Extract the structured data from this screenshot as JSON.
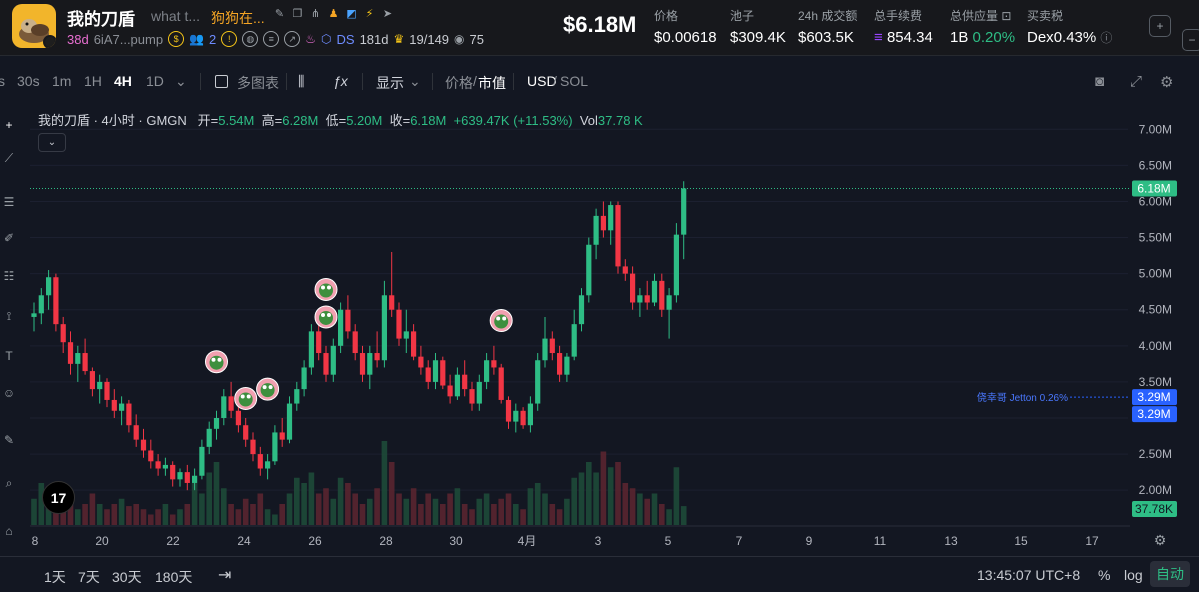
{
  "token": {
    "name": "我的刀盾",
    "description": "what t...",
    "channel": "狗狗在...",
    "age": "38d",
    "address": "6iA7...pump",
    "holders_small": "2",
    "dev": "DS",
    "dev_age": "181d",
    "top_holders": "19/149",
    "views": "75"
  },
  "header": {
    "market_cap": "$6.18M",
    "stats": [
      {
        "label": "价格",
        "value": "$0.00618"
      },
      {
        "label": "池子",
        "value": "$309.4K"
      },
      {
        "label": "24h 成交额",
        "value": "$603.5K"
      },
      {
        "label": "总手续费",
        "value": "854.34"
      },
      {
        "label": "总供应量",
        "value": "1B",
        "extra": "0.20%"
      },
      {
        "label": "买卖税",
        "value": "Dex",
        "extra": "0.43%"
      }
    ]
  },
  "toolbar": {
    "intervals": [
      "30s",
      "1m",
      "1H",
      "4H",
      "1D"
    ],
    "active_interval": "4H",
    "multi_chart": "多图表",
    "display": "显示",
    "price_mcap_a": "价格",
    "price_mcap_b": "市值",
    "currency_a": "USD",
    "currency_b": "SOL"
  },
  "legend": {
    "title": "我的刀盾 · 4小时 · GMGN",
    "open_label": "开",
    "open": "5.54M",
    "high_label": "高",
    "high": "6.28M",
    "low_label": "低",
    "low": "5.20M",
    "close_label": "收",
    "close": "6.18M",
    "change": "+639.47K (+11.53%)",
    "vol_label": "Vol",
    "vol": "37.78 K"
  },
  "chart_data": {
    "type": "candlestick",
    "y_ticks": [
      "7.00M",
      "6.50M",
      "6.00M",
      "5.50M",
      "5.00M",
      "4.50M",
      "4.00M",
      "3.50M",
      "3.00M",
      "2.50M",
      "2.00M"
    ],
    "y_range": [
      1.67,
      7.35
    ],
    "x_ticks": [
      "8",
      "20",
      "22",
      "24",
      "26",
      "28",
      "30",
      "4月",
      "3",
      "5",
      "7",
      "9",
      "11",
      "13",
      "15",
      "17"
    ],
    "current_price_label": "6.18M",
    "marker_price_label": "3.29M",
    "marker_text": "侥幸哥 Jetton 0.26%",
    "volume_label": "37.78K",
    "candles": [
      [
        4.4,
        4.6,
        4.2,
        4.45
      ],
      [
        4.45,
        4.8,
        4.3,
        4.7
      ],
      [
        4.7,
        5.05,
        4.5,
        4.95
      ],
      [
        4.95,
        5.0,
        4.2,
        4.3
      ],
      [
        4.3,
        4.4,
        3.9,
        4.05
      ],
      [
        4.05,
        4.2,
        3.6,
        3.75
      ],
      [
        3.75,
        4.0,
        3.5,
        3.9
      ],
      [
        3.9,
        4.1,
        3.6,
        3.65
      ],
      [
        3.65,
        3.7,
        3.3,
        3.4
      ],
      [
        3.4,
        3.6,
        3.2,
        3.5
      ],
      [
        3.5,
        3.55,
        3.15,
        3.25
      ],
      [
        3.25,
        3.4,
        3.0,
        3.1
      ],
      [
        3.1,
        3.3,
        2.9,
        3.2
      ],
      [
        3.2,
        3.25,
        2.8,
        2.9
      ],
      [
        2.9,
        3.05,
        2.6,
        2.7
      ],
      [
        2.7,
        2.85,
        2.45,
        2.55
      ],
      [
        2.55,
        2.7,
        2.3,
        2.4
      ],
      [
        2.4,
        2.5,
        2.2,
        2.3
      ],
      [
        2.3,
        2.45,
        2.2,
        2.35
      ],
      [
        2.35,
        2.4,
        2.05,
        2.15
      ],
      [
        2.15,
        2.3,
        2.05,
        2.25
      ],
      [
        2.25,
        2.35,
        2.0,
        2.1
      ],
      [
        2.1,
        2.3,
        2.0,
        2.2
      ],
      [
        2.2,
        2.7,
        2.15,
        2.6
      ],
      [
        2.6,
        2.95,
        2.5,
        2.85
      ],
      [
        2.85,
        3.1,
        2.7,
        3.0
      ],
      [
        3.0,
        3.4,
        2.9,
        3.3
      ],
      [
        3.3,
        3.5,
        3.0,
        3.1
      ],
      [
        3.1,
        3.2,
        2.8,
        2.9
      ],
      [
        2.9,
        3.0,
        2.6,
        2.7
      ],
      [
        2.7,
        2.8,
        2.4,
        2.5
      ],
      [
        2.5,
        2.6,
        2.2,
        2.3
      ],
      [
        2.3,
        2.5,
        2.15,
        2.4
      ],
      [
        2.4,
        2.9,
        2.35,
        2.8
      ],
      [
        2.8,
        3.0,
        2.6,
        2.7
      ],
      [
        2.7,
        3.3,
        2.65,
        3.2
      ],
      [
        3.2,
        3.5,
        3.1,
        3.4
      ],
      [
        3.4,
        3.8,
        3.3,
        3.7
      ],
      [
        3.7,
        4.3,
        3.6,
        4.2
      ],
      [
        4.2,
        4.4,
        3.8,
        3.9
      ],
      [
        3.9,
        4.0,
        3.5,
        3.6
      ],
      [
        3.6,
        4.1,
        3.5,
        4.0
      ],
      [
        4.0,
        4.6,
        3.9,
        4.5
      ],
      [
        4.5,
        4.7,
        4.1,
        4.2
      ],
      [
        4.2,
        4.3,
        3.8,
        3.9
      ],
      [
        3.9,
        4.0,
        3.5,
        3.6
      ],
      [
        3.6,
        4.0,
        3.4,
        3.9
      ],
      [
        3.9,
        4.2,
        3.7,
        3.8
      ],
      [
        3.8,
        4.9,
        3.7,
        4.7
      ],
      [
        4.7,
        5.3,
        4.4,
        4.5
      ],
      [
        4.5,
        4.6,
        4.0,
        4.1
      ],
      [
        4.1,
        4.5,
        3.9,
        4.2
      ],
      [
        4.2,
        4.3,
        3.8,
        3.85
      ],
      [
        3.85,
        4.0,
        3.6,
        3.7
      ],
      [
        3.7,
        3.8,
        3.4,
        3.5
      ],
      [
        3.5,
        3.9,
        3.4,
        3.8
      ],
      [
        3.8,
        3.85,
        3.4,
        3.45
      ],
      [
        3.45,
        3.6,
        3.2,
        3.3
      ],
      [
        3.3,
        3.7,
        3.25,
        3.6
      ],
      [
        3.6,
        3.8,
        3.3,
        3.4
      ],
      [
        3.4,
        3.5,
        3.1,
        3.2
      ],
      [
        3.2,
        3.6,
        3.1,
        3.5
      ],
      [
        3.5,
        3.9,
        3.4,
        3.8
      ],
      [
        3.8,
        4.0,
        3.6,
        3.7
      ],
      [
        3.7,
        3.75,
        3.2,
        3.25
      ],
      [
        3.25,
        3.3,
        2.85,
        2.95
      ],
      [
        2.95,
        3.2,
        2.8,
        3.1
      ],
      [
        3.1,
        3.15,
        2.85,
        2.9
      ],
      [
        2.9,
        3.3,
        2.8,
        3.2
      ],
      [
        3.2,
        3.9,
        3.1,
        3.8
      ],
      [
        3.8,
        4.4,
        3.7,
        4.1
      ],
      [
        4.1,
        4.2,
        3.8,
        3.9
      ],
      [
        3.9,
        4.0,
        3.5,
        3.6
      ],
      [
        3.6,
        3.9,
        3.5,
        3.85
      ],
      [
        3.85,
        4.5,
        3.8,
        4.3
      ],
      [
        4.3,
        4.8,
        4.2,
        4.7
      ],
      [
        4.7,
        5.5,
        4.6,
        5.4
      ],
      [
        5.4,
        5.9,
        5.2,
        5.8
      ],
      [
        5.8,
        6.0,
        5.5,
        5.6
      ],
      [
        5.6,
        6.0,
        5.4,
        5.95
      ],
      [
        5.95,
        6.0,
        5.0,
        5.1
      ],
      [
        5.1,
        5.2,
        4.9,
        5.0
      ],
      [
        5.0,
        5.1,
        4.5,
        4.6
      ],
      [
        4.6,
        4.8,
        4.4,
        4.7
      ],
      [
        4.7,
        4.9,
        4.5,
        4.6
      ],
      [
        4.6,
        5.0,
        4.55,
        4.9
      ],
      [
        4.9,
        5.0,
        4.4,
        4.5
      ],
      [
        4.5,
        4.8,
        4.1,
        4.7
      ],
      [
        4.7,
        5.7,
        4.6,
        5.54
      ],
      [
        5.54,
        6.28,
        5.2,
        6.18
      ]
    ],
    "volumes": [
      0.25,
      0.4,
      0.3,
      0.2,
      0.35,
      0.2,
      0.15,
      0.2,
      0.3,
      0.2,
      0.15,
      0.2,
      0.25,
      0.18,
      0.2,
      0.15,
      0.1,
      0.15,
      0.2,
      0.1,
      0.15,
      0.2,
      0.4,
      0.3,
      0.5,
      0.6,
      0.35,
      0.2,
      0.15,
      0.25,
      0.2,
      0.3,
      0.15,
      0.1,
      0.2,
      0.3,
      0.45,
      0.4,
      0.5,
      0.3,
      0.35,
      0.25,
      0.45,
      0.4,
      0.3,
      0.2,
      0.25,
      0.35,
      0.8,
      0.6,
      0.3,
      0.25,
      0.35,
      0.2,
      0.3,
      0.25,
      0.2,
      0.3,
      0.35,
      0.2,
      0.15,
      0.25,
      0.3,
      0.2,
      0.25,
      0.3,
      0.2,
      0.15,
      0.35,
      0.4,
      0.3,
      0.2,
      0.15,
      0.25,
      0.45,
      0.5,
      0.6,
      0.5,
      0.7,
      0.55,
      0.6,
      0.4,
      0.35,
      0.3,
      0.25,
      0.3,
      0.2,
      0.15,
      0.55,
      0.18
    ],
    "avatar_markers": [
      {
        "candle": 25,
        "price": 3.78
      },
      {
        "candle": 29,
        "price": 3.27
      },
      {
        "candle": 32,
        "price": 3.4
      },
      {
        "candle": 40,
        "price": 4.78
      },
      {
        "candle": 40,
        "price": 4.4
      },
      {
        "candle": 64,
        "price": 4.35
      }
    ]
  },
  "bottom": {
    "ranges": [
      "1天",
      "7天",
      "30天",
      "180天"
    ],
    "time": "13:45:07 UTC+8",
    "percent": "%",
    "log": "log",
    "auto": "自动"
  },
  "colors": {
    "up": "#2ebd85",
    "down": "#f23645",
    "accent": "#2962ff"
  }
}
